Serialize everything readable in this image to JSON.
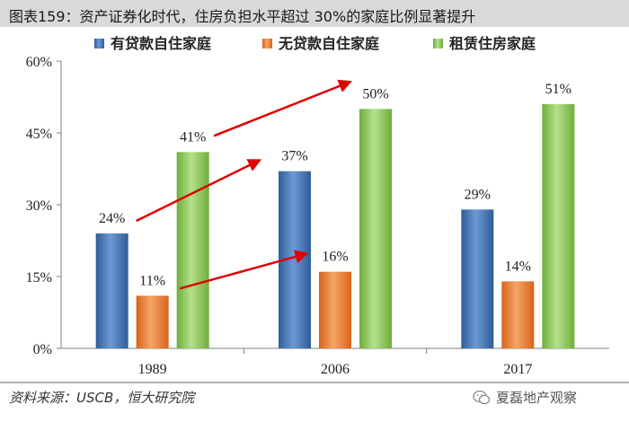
{
  "title": "图表159：资产证券化时代，住房负担水平超过 30%的家庭比例显著提升",
  "source": "资料来源：USCB，恒大研究院",
  "watermark": "夏磊地产观察",
  "faded_text": "",
  "colors": {
    "series": [
      "#4a78b8",
      "#ed7d31",
      "#8fc95a"
    ],
    "arrow": "#e00000"
  },
  "chart_data": {
    "type": "bar",
    "categories": [
      "1989",
      "2006",
      "2017"
    ],
    "series": [
      {
        "name": "有贷款自住家庭",
        "values": [
          24,
          37,
          29
        ],
        "labels": [
          "24%",
          "37%",
          "29%"
        ]
      },
      {
        "name": "无贷款自住家庭",
        "values": [
          11,
          16,
          14
        ],
        "labels": [
          "11%",
          "16%",
          "14%"
        ]
      },
      {
        "name": "租赁住房家庭",
        "values": [
          41,
          50,
          51
        ],
        "labels": [
          "41%",
          "50%",
          "51%"
        ]
      }
    ],
    "ylim": [
      0,
      60
    ],
    "yticks": [
      0,
      15,
      30,
      45,
      60
    ],
    "ytick_labels": [
      "0%",
      "15%",
      "30%",
      "45%",
      "60%"
    ],
    "grid": false,
    "legend_position": "top",
    "annotations": "red arrows linking each series value from 1989 to 2006"
  }
}
